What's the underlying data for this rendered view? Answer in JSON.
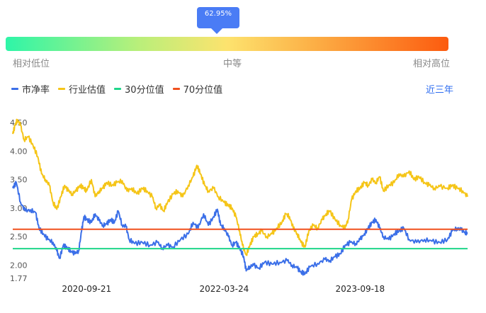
{
  "gauge": {
    "percentile_label": "62.95%",
    "percentile_value": 0.6295,
    "low_label": "相对低位",
    "mid_label": "中等",
    "high_label": "相对高位",
    "gradient_colors": [
      "#2ef5a8",
      "#fde36e",
      "#fc5b0f"
    ],
    "marker_color": "#4a7cf5"
  },
  "range_button": "近三年",
  "chart_data": {
    "type": "line",
    "x_ticks": [
      "2020-09-21",
      "2022-03-24",
      "2023-09-18"
    ],
    "y_ticks": [
      1.77,
      2.0,
      2.5,
      3.0,
      3.5,
      4.0,
      4.5
    ],
    "y_tick_labels": [
      "1.77",
      "2.00",
      "2.50",
      "3.00",
      "3.50",
      "4.00",
      "4.50"
    ],
    "ylim": [
      1.77,
      4.6
    ],
    "xlim": [
      "2019-12-01",
      "2024-11-20"
    ],
    "grid": false,
    "legend_position": "top-left",
    "series": [
      {
        "name": "市净率",
        "color": "#3b6fe8",
        "points": [
          [
            "2019-12-01",
            3.35
          ],
          [
            "2019-12-15",
            3.45
          ],
          [
            "2020-01-01",
            3.1
          ],
          [
            "2020-01-20",
            2.95
          ],
          [
            "2020-02-10",
            2.97
          ],
          [
            "2020-03-01",
            2.92
          ],
          [
            "2020-03-15",
            2.65
          ],
          [
            "2020-04-01",
            2.55
          ],
          [
            "2020-04-20",
            2.45
          ],
          [
            "2020-05-10",
            2.4
          ],
          [
            "2020-05-25",
            2.25
          ],
          [
            "2020-06-05",
            2.12
          ],
          [
            "2020-06-20",
            2.35
          ],
          [
            "2020-07-05",
            2.3
          ],
          [
            "2020-07-20",
            2.25
          ],
          [
            "2020-08-05",
            2.2
          ],
          [
            "2020-08-20",
            2.25
          ],
          [
            "2020-09-01",
            2.6
          ],
          [
            "2020-09-10",
            2.85
          ],
          [
            "2020-09-21",
            2.8
          ],
          [
            "2020-10-10",
            2.75
          ],
          [
            "2020-10-25",
            2.9
          ],
          [
            "2020-11-10",
            2.78
          ],
          [
            "2020-11-25",
            2.7
          ],
          [
            "2020-12-10",
            2.72
          ],
          [
            "2020-12-25",
            2.8
          ],
          [
            "2021-01-10",
            2.75
          ],
          [
            "2021-01-25",
            2.95
          ],
          [
            "2021-02-10",
            2.7
          ],
          [
            "2021-02-25",
            2.68
          ],
          [
            "2021-03-10",
            2.45
          ],
          [
            "2021-04-01",
            2.38
          ],
          [
            "2021-05-01",
            2.4
          ],
          [
            "2021-06-01",
            2.35
          ],
          [
            "2021-07-01",
            2.4
          ],
          [
            "2021-07-20",
            2.3
          ],
          [
            "2021-08-10",
            2.35
          ],
          [
            "2021-09-01",
            2.32
          ],
          [
            "2021-10-01",
            2.45
          ],
          [
            "2021-11-01",
            2.55
          ],
          [
            "2021-11-20",
            2.75
          ],
          [
            "2021-12-10",
            2.65
          ],
          [
            "2022-01-01",
            2.9
          ],
          [
            "2022-01-20",
            2.7
          ],
          [
            "2022-02-10",
            2.85
          ],
          [
            "2022-02-25",
            2.98
          ],
          [
            "2022-03-10",
            2.7
          ],
          [
            "2022-03-24",
            2.65
          ],
          [
            "2022-04-10",
            2.5
          ],
          [
            "2022-04-25",
            2.35
          ],
          [
            "2022-05-10",
            2.4
          ],
          [
            "2022-05-25",
            2.3
          ],
          [
            "2022-06-10",
            2.15
          ],
          [
            "2022-06-20",
            1.9
          ],
          [
            "2022-07-05",
            1.98
          ],
          [
            "2022-07-20",
            2.0
          ],
          [
            "2022-08-10",
            1.95
          ],
          [
            "2022-09-01",
            2.05
          ],
          [
            "2022-10-01",
            2.02
          ],
          [
            "2022-11-01",
            2.05
          ],
          [
            "2022-12-01",
            2.08
          ],
          [
            "2022-12-20",
            2.0
          ],
          [
            "2023-01-10",
            1.95
          ],
          [
            "2023-01-25",
            1.88
          ],
          [
            "2023-02-10",
            1.85
          ],
          [
            "2023-03-01",
            1.97
          ],
          [
            "2023-04-01",
            2.03
          ],
          [
            "2023-05-01",
            2.1
          ],
          [
            "2023-05-20",
            2.08
          ],
          [
            "2023-06-10",
            2.15
          ],
          [
            "2023-07-01",
            2.2
          ],
          [
            "2023-07-20",
            2.35
          ],
          [
            "2023-08-10",
            2.4
          ],
          [
            "2023-09-01",
            2.38
          ],
          [
            "2023-09-18",
            2.45
          ],
          [
            "2023-10-05",
            2.55
          ],
          [
            "2023-10-20",
            2.65
          ],
          [
            "2023-11-05",
            2.75
          ],
          [
            "2023-11-20",
            2.8
          ],
          [
            "2023-12-05",
            2.65
          ],
          [
            "2023-12-20",
            2.5
          ],
          [
            "2024-01-10",
            2.45
          ],
          [
            "2024-02-01",
            2.55
          ],
          [
            "2024-02-20",
            2.6
          ],
          [
            "2024-03-10",
            2.65
          ],
          [
            "2024-04-01",
            2.45
          ],
          [
            "2024-05-01",
            2.4
          ],
          [
            "2024-06-01",
            2.45
          ],
          [
            "2024-07-01",
            2.42
          ],
          [
            "2024-08-01",
            2.4
          ],
          [
            "2024-09-01",
            2.45
          ],
          [
            "2024-09-20",
            2.6
          ],
          [
            "2024-10-10",
            2.65
          ],
          [
            "2024-10-25",
            2.62
          ],
          [
            "2024-11-10",
            2.58
          ],
          [
            "2024-11-20",
            2.55
          ]
        ]
      },
      {
        "name": "行业估值",
        "color": "#f5c518",
        "points": [
          [
            "2019-12-01",
            4.3
          ],
          [
            "2019-12-10",
            4.45
          ],
          [
            "2019-12-20",
            4.55
          ],
          [
            "2020-01-01",
            4.45
          ],
          [
            "2020-01-15",
            4.2
          ],
          [
            "2020-02-01",
            4.25
          ],
          [
            "2020-02-20",
            4.1
          ],
          [
            "2020-03-10",
            3.9
          ],
          [
            "2020-03-25",
            3.6
          ],
          [
            "2020-04-10",
            3.5
          ],
          [
            "2020-04-25",
            3.4
          ],
          [
            "2020-05-10",
            3.1
          ],
          [
            "2020-05-25",
            2.98
          ],
          [
            "2020-06-10",
            3.2
          ],
          [
            "2020-06-25",
            3.4
          ],
          [
            "2020-07-10",
            3.3
          ],
          [
            "2020-07-25",
            3.25
          ],
          [
            "2020-08-10",
            3.3
          ],
          [
            "2020-08-25",
            3.4
          ],
          [
            "2020-09-10",
            3.35
          ],
          [
            "2020-09-21",
            3.3
          ],
          [
            "2020-10-10",
            3.5
          ],
          [
            "2020-10-25",
            3.2
          ],
          [
            "2020-11-10",
            3.3
          ],
          [
            "2020-11-25",
            3.35
          ],
          [
            "2020-12-10",
            3.45
          ],
          [
            "2021-01-01",
            3.4
          ],
          [
            "2021-01-20",
            3.45
          ],
          [
            "2021-02-10",
            3.48
          ],
          [
            "2021-03-01",
            3.3
          ],
          [
            "2021-03-20",
            3.35
          ],
          [
            "2021-04-10",
            3.25
          ],
          [
            "2021-05-01",
            3.35
          ],
          [
            "2021-05-20",
            3.3
          ],
          [
            "2021-06-10",
            3.2
          ],
          [
            "2021-06-25",
            3.0
          ],
          [
            "2021-07-10",
            3.05
          ],
          [
            "2021-07-25",
            2.95
          ],
          [
            "2021-08-10",
            3.1
          ],
          [
            "2021-09-01",
            3.25
          ],
          [
            "2021-09-20",
            3.3
          ],
          [
            "2021-10-10",
            3.2
          ],
          [
            "2021-11-01",
            3.4
          ],
          [
            "2021-11-20",
            3.55
          ],
          [
            "2021-12-05",
            3.75
          ],
          [
            "2021-12-20",
            3.6
          ],
          [
            "2022-01-05",
            3.4
          ],
          [
            "2022-01-20",
            3.3
          ],
          [
            "2022-02-10",
            3.35
          ],
          [
            "2022-03-01",
            3.2
          ],
          [
            "2022-03-24",
            3.1
          ],
          [
            "2022-04-10",
            3.05
          ],
          [
            "2022-04-25",
            3.0
          ],
          [
            "2022-05-10",
            2.85
          ],
          [
            "2022-05-25",
            2.6
          ],
          [
            "2022-06-05",
            2.35
          ],
          [
            "2022-06-20",
            2.18
          ],
          [
            "2022-07-05",
            2.35
          ],
          [
            "2022-07-20",
            2.5
          ],
          [
            "2022-08-05",
            2.55
          ],
          [
            "2022-08-20",
            2.6
          ],
          [
            "2022-09-10",
            2.5
          ],
          [
            "2022-10-01",
            2.55
          ],
          [
            "2022-10-20",
            2.65
          ],
          [
            "2022-11-10",
            2.75
          ],
          [
            "2022-11-25",
            2.9
          ],
          [
            "2022-12-10",
            2.85
          ],
          [
            "2022-12-25",
            2.65
          ],
          [
            "2023-01-10",
            2.55
          ],
          [
            "2023-01-25",
            2.4
          ],
          [
            "2023-02-10",
            2.32
          ],
          [
            "2023-02-25",
            2.6
          ],
          [
            "2023-03-15",
            2.7
          ],
          [
            "2023-04-01",
            2.65
          ],
          [
            "2023-04-20",
            2.8
          ],
          [
            "2023-05-05",
            2.9
          ],
          [
            "2023-05-20",
            2.95
          ],
          [
            "2023-06-10",
            2.8
          ],
          [
            "2023-07-01",
            2.7
          ],
          [
            "2023-07-20",
            2.65
          ],
          [
            "2023-08-01",
            2.8
          ],
          [
            "2023-08-15",
            3.15
          ],
          [
            "2023-09-01",
            3.3
          ],
          [
            "2023-09-18",
            3.35
          ],
          [
            "2023-10-05",
            3.45
          ],
          [
            "2023-10-20",
            3.4
          ],
          [
            "2023-11-05",
            3.5
          ],
          [
            "2023-11-20",
            3.45
          ],
          [
            "2023-12-05",
            3.55
          ],
          [
            "2023-12-20",
            3.3
          ],
          [
            "2024-01-10",
            3.4
          ],
          [
            "2024-02-01",
            3.45
          ],
          [
            "2024-02-20",
            3.6
          ],
          [
            "2024-03-10",
            3.55
          ],
          [
            "2024-04-01",
            3.65
          ],
          [
            "2024-04-20",
            3.5
          ],
          [
            "2024-05-10",
            3.55
          ],
          [
            "2024-06-01",
            3.45
          ],
          [
            "2024-06-20",
            3.4
          ],
          [
            "2024-07-10",
            3.35
          ],
          [
            "2024-08-01",
            3.38
          ],
          [
            "2024-09-01",
            3.35
          ],
          [
            "2024-09-20",
            3.4
          ],
          [
            "2024-10-10",
            3.35
          ],
          [
            "2024-11-01",
            3.3
          ],
          [
            "2024-11-20",
            3.2
          ]
        ]
      },
      {
        "name": "30分位值",
        "color": "#1fd68a",
        "value": 2.29
      },
      {
        "name": "70分位值",
        "color": "#f0501e",
        "value": 2.63
      }
    ]
  }
}
